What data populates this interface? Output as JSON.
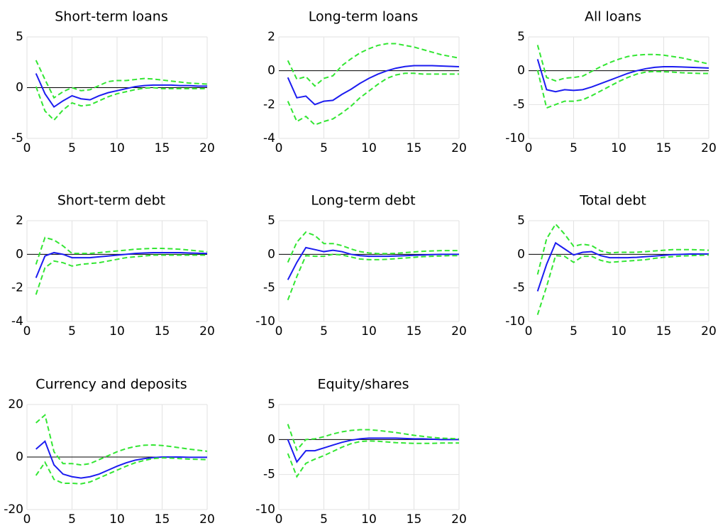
{
  "chart_data": [
    {
      "type": "line",
      "title": "Short-term loans",
      "x": [
        1,
        2,
        3,
        4,
        5,
        6,
        7,
        8,
        9,
        10,
        11,
        12,
        13,
        14,
        15,
        16,
        17,
        18,
        19,
        20
      ],
      "xlim": [
        0,
        20
      ],
      "xticks": [
        0,
        5,
        10,
        15,
        20
      ],
      "ylim": [
        -5,
        5
      ],
      "yticks": [
        -5,
        0,
        5
      ],
      "grid": true,
      "reference_line": 0,
      "series": [
        {
          "color": "#1c1cf0",
          "dash": false,
          "values": [
            1.4,
            -0.6,
            -1.9,
            -1.3,
            -0.8,
            -1.1,
            -1.2,
            -0.8,
            -0.5,
            -0.3,
            -0.1,
            0.1,
            0.2,
            0.25,
            0.25,
            0.25,
            0.2,
            0.2,
            0.15,
            0.15
          ]
        },
        {
          "color": "#33e633",
          "dash": true,
          "values": [
            2.7,
            0.8,
            -1.0,
            -0.4,
            0,
            -0.3,
            -0.2,
            0.2,
            0.6,
            0.7,
            0.7,
            0.8,
            0.9,
            0.85,
            0.75,
            0.65,
            0.55,
            0.45,
            0.4,
            0.35
          ]
        },
        {
          "color": "#33e633",
          "dash": true,
          "values": [
            0.1,
            -2.3,
            -3.2,
            -2.2,
            -1.5,
            -1.8,
            -1.7,
            -1.3,
            -0.9,
            -0.6,
            -0.4,
            -0.2,
            -0.05,
            0,
            -0.1,
            -0.1,
            -0.1,
            -0.1,
            -0.1,
            -0.1
          ]
        }
      ]
    },
    {
      "type": "line",
      "title": "Long-term loans",
      "x": [
        1,
        2,
        3,
        4,
        5,
        6,
        7,
        8,
        9,
        10,
        11,
        12,
        13,
        14,
        15,
        16,
        17,
        18,
        19,
        20
      ],
      "xlim": [
        0,
        20
      ],
      "xticks": [
        0,
        5,
        10,
        15,
        20
      ],
      "ylim": [
        -4,
        2
      ],
      "yticks": [
        -4,
        -2,
        0,
        2
      ],
      "grid": true,
      "reference_line": 0,
      "series": [
        {
          "color": "#1c1cf0",
          "dash": false,
          "values": [
            -0.4,
            -1.6,
            -1.5,
            -2.0,
            -1.8,
            -1.75,
            -1.4,
            -1.1,
            -0.75,
            -0.45,
            -0.2,
            0,
            0.15,
            0.25,
            0.3,
            0.3,
            0.3,
            0.28,
            0.26,
            0.24
          ]
        },
        {
          "color": "#33e633",
          "dash": true,
          "values": [
            0.6,
            -0.5,
            -0.35,
            -0.9,
            -0.45,
            -0.3,
            0.3,
            0.7,
            1.05,
            1.3,
            1.5,
            1.6,
            1.6,
            1.5,
            1.4,
            1.25,
            1.1,
            0.95,
            0.85,
            0.75
          ]
        },
        {
          "color": "#33e633",
          "dash": true,
          "values": [
            -1.8,
            -3.0,
            -2.7,
            -3.2,
            -3.0,
            -2.85,
            -2.5,
            -2.1,
            -1.6,
            -1.2,
            -0.8,
            -0.45,
            -0.25,
            -0.15,
            -0.15,
            -0.2,
            -0.2,
            -0.2,
            -0.2,
            -0.2
          ]
        }
      ]
    },
    {
      "type": "line",
      "title": "All loans",
      "x": [
        1,
        2,
        3,
        4,
        5,
        6,
        7,
        8,
        9,
        10,
        11,
        12,
        13,
        14,
        15,
        16,
        17,
        18,
        19,
        20
      ],
      "xlim": [
        0,
        20
      ],
      "xticks": [
        0,
        5,
        10,
        15,
        20
      ],
      "ylim": [
        -10,
        5
      ],
      "yticks": [
        -10,
        -5,
        0,
        5
      ],
      "grid": true,
      "reference_line": 0,
      "series": [
        {
          "color": "#1c1cf0",
          "dash": false,
          "values": [
            1.7,
            -2.8,
            -3.1,
            -2.8,
            -2.9,
            -2.8,
            -2.4,
            -1.9,
            -1.4,
            -0.9,
            -0.4,
            0,
            0.3,
            0.5,
            0.6,
            0.6,
            0.55,
            0.5,
            0.45,
            0.4
          ]
        },
        {
          "color": "#33e633",
          "dash": true,
          "values": [
            3.8,
            -1.0,
            -1.5,
            -1.1,
            -1.0,
            -0.8,
            -0.1,
            0.6,
            1.2,
            1.7,
            2.1,
            2.3,
            2.4,
            2.4,
            2.3,
            2.1,
            1.9,
            1.6,
            1.3,
            1.0
          ]
        },
        {
          "color": "#33e633",
          "dash": true,
          "values": [
            0.1,
            -5.5,
            -5.0,
            -4.5,
            -4.5,
            -4.3,
            -3.7,
            -3.0,
            -2.3,
            -1.6,
            -1.0,
            -0.5,
            -0.2,
            -0.1,
            -0.15,
            -0.2,
            -0.3,
            -0.35,
            -0.4,
            -0.4
          ]
        }
      ]
    },
    {
      "type": "line",
      "title": "Short-term debt",
      "x": [
        1,
        2,
        3,
        4,
        5,
        6,
        7,
        8,
        9,
        10,
        11,
        12,
        13,
        14,
        15,
        16,
        17,
        18,
        19,
        20
      ],
      "xlim": [
        0,
        20
      ],
      "xticks": [
        0,
        5,
        10,
        15,
        20
      ],
      "ylim": [
        -4,
        2
      ],
      "yticks": [
        -4,
        -2,
        0,
        2
      ],
      "grid": true,
      "reference_line": 0,
      "series": [
        {
          "color": "#1c1cf0",
          "dash": false,
          "values": [
            -1.4,
            -0.1,
            0.1,
            0,
            -0.2,
            -0.2,
            -0.2,
            -0.15,
            -0.1,
            -0.05,
            0,
            0.05,
            0.08,
            0.1,
            0.1,
            0.1,
            0.1,
            0.08,
            0.06,
            0.05
          ]
        },
        {
          "color": "#33e633",
          "dash": true,
          "values": [
            -0.6,
            1.0,
            0.85,
            0.5,
            0.05,
            0.05,
            0.05,
            0.1,
            0.15,
            0.2,
            0.25,
            0.3,
            0.33,
            0.35,
            0.35,
            0.33,
            0.3,
            0.25,
            0.2,
            0.15
          ]
        },
        {
          "color": "#33e633",
          "dash": true,
          "values": [
            -2.4,
            -0.8,
            -0.4,
            -0.5,
            -0.7,
            -0.6,
            -0.55,
            -0.5,
            -0.4,
            -0.3,
            -0.2,
            -0.15,
            -0.1,
            -0.05,
            -0.05,
            -0.05,
            -0.05,
            -0.05,
            -0.05,
            -0.05
          ]
        }
      ]
    },
    {
      "type": "line",
      "title": "Long-term debt",
      "x": [
        1,
        2,
        3,
        4,
        5,
        6,
        7,
        8,
        9,
        10,
        11,
        12,
        13,
        14,
        15,
        16,
        17,
        18,
        19,
        20
      ],
      "xlim": [
        0,
        20
      ],
      "xticks": [
        0,
        5,
        10,
        15,
        20
      ],
      "ylim": [
        -10,
        5
      ],
      "yticks": [
        -10,
        -5,
        0,
        5
      ],
      "grid": true,
      "reference_line": 0,
      "series": [
        {
          "color": "#1c1cf0",
          "dash": false,
          "values": [
            -3.8,
            -1.2,
            1.0,
            0.7,
            0.4,
            0.6,
            0.4,
            0,
            -0.2,
            -0.3,
            -0.3,
            -0.3,
            -0.25,
            -0.2,
            -0.15,
            -0.1,
            -0.05,
            0,
            0,
            0
          ]
        },
        {
          "color": "#33e633",
          "dash": true,
          "values": [
            -1.2,
            1.8,
            3.3,
            2.8,
            1.6,
            1.6,
            1.3,
            0.8,
            0.4,
            0.2,
            0.1,
            0.1,
            0.15,
            0.25,
            0.35,
            0.45,
            0.5,
            0.55,
            0.55,
            0.55
          ]
        },
        {
          "color": "#33e633",
          "dash": true,
          "values": [
            -6.8,
            -3.3,
            -0.2,
            -0.3,
            -0.3,
            0,
            -0.1,
            -0.4,
            -0.7,
            -0.8,
            -0.8,
            -0.75,
            -0.65,
            -0.55,
            -0.45,
            -0.35,
            -0.3,
            -0.25,
            -0.2,
            -0.2
          ]
        }
      ]
    },
    {
      "type": "line",
      "title": "Total debt",
      "x": [
        1,
        2,
        3,
        4,
        5,
        6,
        7,
        8,
        9,
        10,
        11,
        12,
        13,
        14,
        15,
        16,
        17,
        18,
        19,
        20
      ],
      "xlim": [
        0,
        20
      ],
      "xticks": [
        0,
        5,
        10,
        15,
        20
      ],
      "ylim": [
        -10,
        5
      ],
      "yticks": [
        -10,
        -5,
        0,
        5
      ],
      "grid": true,
      "reference_line": 0,
      "series": [
        {
          "color": "#1c1cf0",
          "dash": false,
          "values": [
            -5.5,
            -1.5,
            1.7,
            0.8,
            -0.1,
            0.3,
            0.4,
            -0.2,
            -0.5,
            -0.5,
            -0.5,
            -0.45,
            -0.35,
            -0.25,
            -0.15,
            -0.05,
            0,
            0.05,
            0.05,
            0.05
          ]
        },
        {
          "color": "#33e633",
          "dash": true,
          "values": [
            -3,
            2.3,
            4.5,
            3.0,
            1.2,
            1.5,
            1.3,
            0.5,
            0.2,
            0.3,
            0.3,
            0.3,
            0.4,
            0.5,
            0.6,
            0.7,
            0.7,
            0.7,
            0.65,
            0.6
          ]
        },
        {
          "color": "#33e633",
          "dash": true,
          "values": [
            -9,
            -4.8,
            -0.2,
            -0.3,
            -1.2,
            -0.3,
            -0.3,
            -0.9,
            -1.2,
            -1.1,
            -1.0,
            -0.9,
            -0.8,
            -0.6,
            -0.45,
            -0.35,
            -0.25,
            -0.2,
            -0.15,
            -0.1
          ]
        }
      ]
    },
    {
      "type": "line",
      "title": "Currency and deposits",
      "x": [
        1,
        2,
        3,
        4,
        5,
        6,
        7,
        8,
        9,
        10,
        11,
        12,
        13,
        14,
        15,
        16,
        17,
        18,
        19,
        20
      ],
      "xlim": [
        0,
        20
      ],
      "xticks": [
        0,
        5,
        10,
        15,
        20
      ],
      "ylim": [
        -20,
        20
      ],
      "yticks": [
        -20,
        0,
        20
      ],
      "grid": true,
      "reference_line": 0,
      "series": [
        {
          "color": "#1c1cf0",
          "dash": false,
          "values": [
            3,
            6,
            -3,
            -6.5,
            -7.5,
            -8,
            -7.5,
            -6.5,
            -5,
            -3.5,
            -2.2,
            -1.2,
            -0.6,
            -0.2,
            0,
            0,
            0,
            -0.1,
            -0.1,
            -0.1
          ]
        },
        {
          "color": "#33e633",
          "dash": true,
          "values": [
            13,
            16,
            2,
            -2.5,
            -2.5,
            -3,
            -2.5,
            -1,
            0.5,
            2,
            3.2,
            4,
            4.5,
            4.6,
            4.4,
            4,
            3.5,
            3,
            2.6,
            2.2
          ]
        },
        {
          "color": "#33e633",
          "dash": true,
          "values": [
            -7,
            -2,
            -8.5,
            -10,
            -10,
            -10.2,
            -9.5,
            -8,
            -6.5,
            -5,
            -3.5,
            -2.2,
            -1.3,
            -0.6,
            -0.3,
            -0.4,
            -0.6,
            -0.8,
            -0.9,
            -1.0
          ]
        }
      ]
    },
    {
      "type": "line",
      "title": "Equity/shares",
      "x": [
        1,
        2,
        3,
        4,
        5,
        6,
        7,
        8,
        9,
        10,
        11,
        12,
        13,
        14,
        15,
        16,
        17,
        18,
        19,
        20
      ],
      "xlim": [
        0,
        20
      ],
      "xticks": [
        0,
        5,
        10,
        15,
        20
      ],
      "ylim": [
        -10,
        5
      ],
      "yticks": [
        -10,
        -5,
        0,
        5
      ],
      "grid": true,
      "reference_line": 0,
      "series": [
        {
          "color": "#1c1cf0",
          "dash": false,
          "values": [
            0,
            -3.2,
            -1.6,
            -1.6,
            -1.2,
            -0.8,
            -0.4,
            -0.1,
            0.1,
            0.2,
            0.2,
            0.2,
            0.2,
            0.15,
            0.1,
            0.1,
            0.05,
            0,
            0,
            0
          ]
        },
        {
          "color": "#33e633",
          "dash": true,
          "values": [
            2.2,
            -1.5,
            0,
            0.1,
            0.4,
            0.8,
            1.1,
            1.3,
            1.4,
            1.4,
            1.3,
            1.15,
            1,
            0.8,
            0.6,
            0.45,
            0.3,
            0.2,
            0.15,
            0.1
          ]
        },
        {
          "color": "#33e633",
          "dash": true,
          "values": [
            -2,
            -5.3,
            -3.4,
            -2.8,
            -2.3,
            -1.7,
            -1.1,
            -0.6,
            -0.3,
            -0.2,
            -0.25,
            -0.35,
            -0.45,
            -0.5,
            -0.55,
            -0.55,
            -0.55,
            -0.5,
            -0.5,
            -0.5
          ]
        }
      ]
    }
  ]
}
